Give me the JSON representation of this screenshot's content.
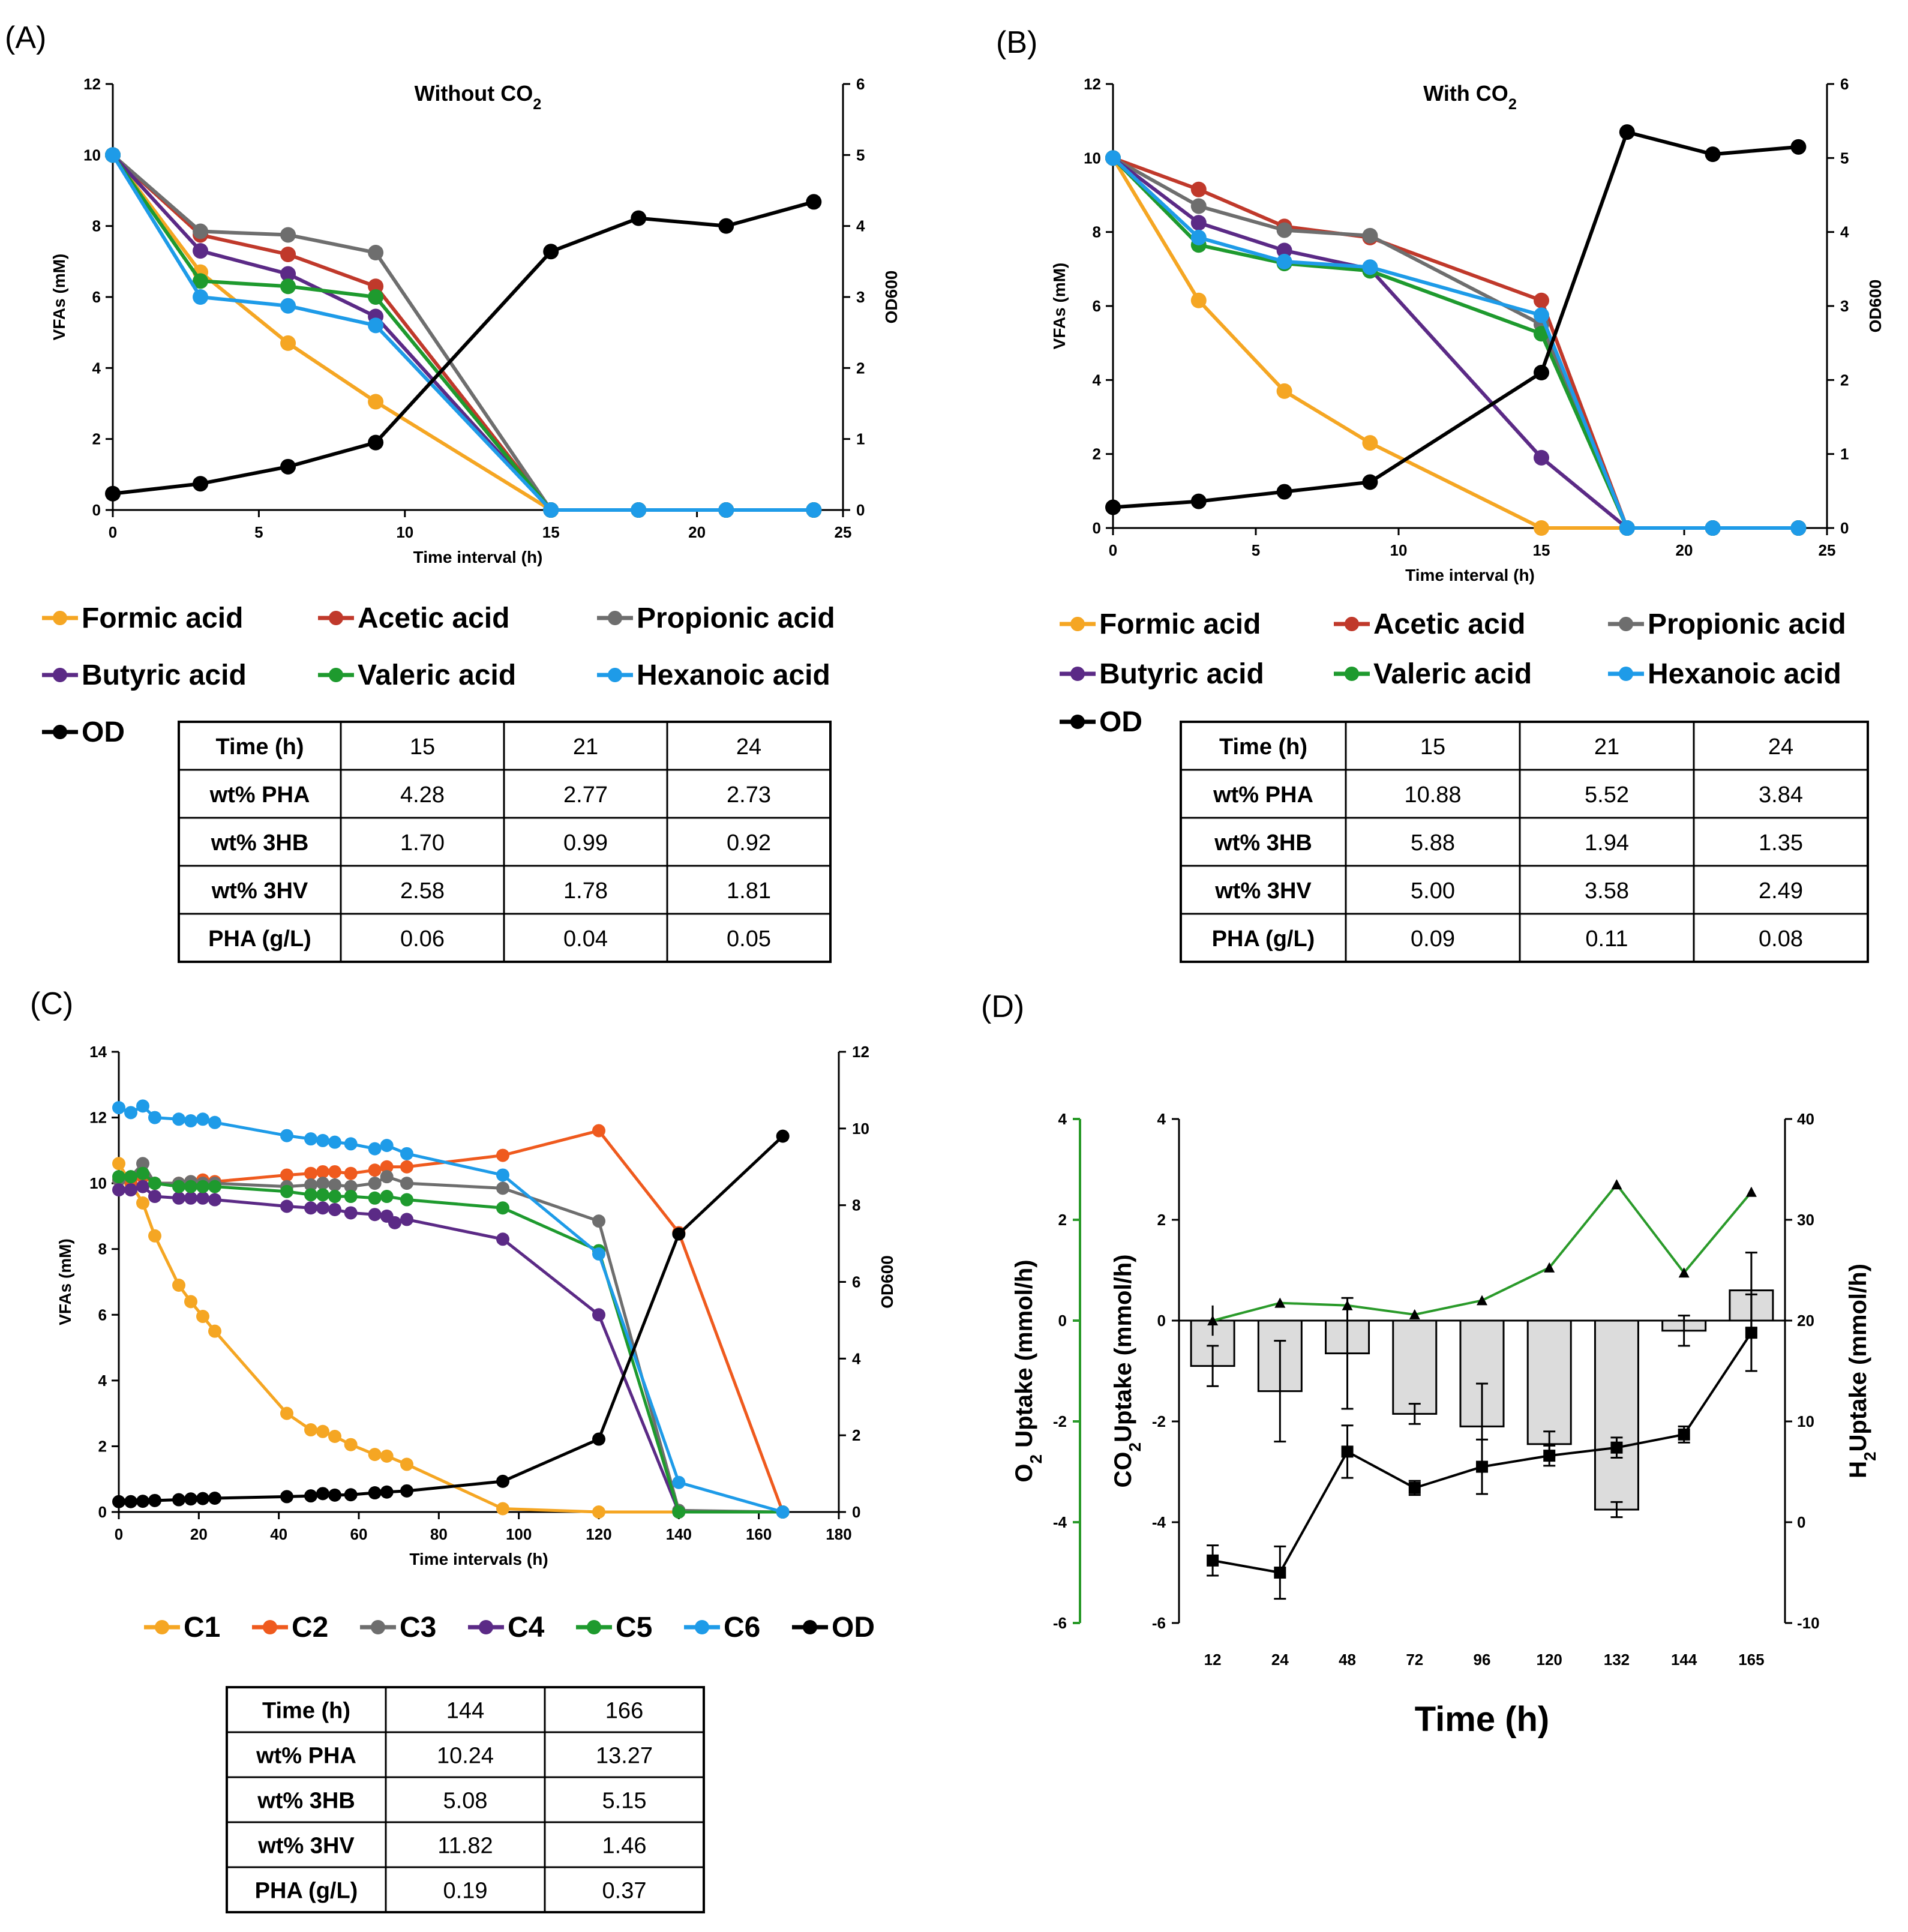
{
  "panels": {
    "A": "(A)",
    "B": "(B)",
    "C": "(C)",
    "D": "(D)"
  },
  "colors": {
    "formic": "#f5a623",
    "acetic": "#c0392b",
    "propionic": "#6e6e6e",
    "butyric": "#5b2a86",
    "valeric": "#1e9a2e",
    "hexanoic": "#1e9be8",
    "od": "#000000",
    "c2": "#ef5a1e",
    "bar": "#dcdcdc",
    "o2line": "#2a9a2a"
  },
  "chart_data": [
    {
      "id": "A",
      "type": "line",
      "title": "Without CO",
      "title_sub": "2",
      "xlabel": "Time interval (h)",
      "ylabel": "VFAs (mM)",
      "y2label": "OD600",
      "xlim": [
        0,
        25
      ],
      "ylim": [
        0,
        12
      ],
      "y2lim": [
        0,
        6
      ],
      "xticks": [
        "0",
        "5",
        "10",
        "15",
        "20",
        "25"
      ],
      "yticks": [
        "0",
        "2",
        "4",
        "6",
        "8",
        "10",
        "12"
      ],
      "y2ticks": [
        "0",
        "1",
        "2",
        "3",
        "4",
        "5",
        "6"
      ],
      "x": [
        0,
        3,
        6,
        9,
        15,
        18,
        21,
        24
      ],
      "series": [
        {
          "key": "formic",
          "name": "Formic acid",
          "values": [
            10,
            6.7,
            4.7,
            3.05,
            0,
            0,
            0,
            0
          ]
        },
        {
          "key": "acetic",
          "name": "Acetic acid",
          "values": [
            10,
            7.75,
            7.2,
            6.3,
            0,
            0,
            0,
            0
          ]
        },
        {
          "key": "propionic",
          "name": "Propionic acid",
          "values": [
            10,
            7.85,
            7.75,
            7.25,
            0,
            0,
            0,
            0
          ]
        },
        {
          "key": "butyric",
          "name": "Butyric acid",
          "values": [
            10,
            7.3,
            6.65,
            5.45,
            0,
            0,
            0,
            0
          ]
        },
        {
          "key": "valeric",
          "name": "Valeric acid",
          "values": [
            10,
            6.45,
            6.3,
            6.0,
            0,
            0,
            0,
            0
          ]
        },
        {
          "key": "hexanoic",
          "name": "Hexanoic acid",
          "values": [
            10,
            6.0,
            5.75,
            5.2,
            0,
            0,
            0,
            0
          ]
        },
        {
          "key": "od",
          "name": "OD",
          "axis": "right",
          "values": [
            0.23,
            0.37,
            0.61,
            0.95,
            3.64,
            4.11,
            4.0,
            4.34
          ]
        }
      ],
      "table": {
        "header": [
          "Time (h)",
          "15",
          "21",
          "24"
        ],
        "rows": [
          [
            "wt% PHA",
            "4.28",
            "2.77",
            "2.73"
          ],
          [
            "wt% 3HB",
            "1.70",
            "0.99",
            "0.92"
          ],
          [
            "wt% 3HV",
            "2.58",
            "1.78",
            "1.81"
          ],
          [
            "PHA (g/L)",
            "0.06",
            "0.04",
            "0.05"
          ]
        ]
      }
    },
    {
      "id": "B",
      "type": "line",
      "title": "With CO",
      "title_sub": "2",
      "xlabel": "Time interval (h)",
      "ylabel": "VFAs (mM)",
      "y2label": "OD600",
      "xlim": [
        0,
        25
      ],
      "ylim": [
        0,
        12
      ],
      "y2lim": [
        0,
        6
      ],
      "xticks": [
        "0",
        "5",
        "10",
        "15",
        "20",
        "25"
      ],
      "yticks": [
        "0",
        "2",
        "4",
        "6",
        "8",
        "10",
        "12"
      ],
      "y2ticks": [
        "0",
        "1",
        "2",
        "3",
        "4",
        "5",
        "6"
      ],
      "x": [
        0,
        3,
        6,
        9,
        15,
        18,
        21,
        24
      ],
      "series": [
        {
          "key": "formic",
          "name": "Formic acid",
          "values": [
            10,
            6.15,
            3.7,
            2.3,
            0,
            0,
            0,
            0
          ]
        },
        {
          "key": "acetic",
          "name": "Acetic acid",
          "values": [
            10,
            9.15,
            8.15,
            7.85,
            6.15,
            0,
            0,
            0
          ]
        },
        {
          "key": "propionic",
          "name": "Propionic acid",
          "values": [
            10,
            8.7,
            8.05,
            7.9,
            5.5,
            0,
            0,
            0
          ]
        },
        {
          "key": "butyric",
          "name": "Butyric acid",
          "values": [
            10,
            8.25,
            7.5,
            7.0,
            1.9,
            0,
            0,
            0
          ]
        },
        {
          "key": "valeric",
          "name": "Valeric acid",
          "values": [
            10,
            7.65,
            7.15,
            6.95,
            5.25,
            0,
            0,
            0
          ]
        },
        {
          "key": "hexanoic",
          "name": "Hexanoic acid",
          "values": [
            10,
            7.85,
            7.2,
            7.05,
            5.75,
            0,
            0,
            0
          ]
        },
        {
          "key": "od",
          "name": "OD",
          "axis": "right",
          "values": [
            0.28,
            0.36,
            0.49,
            0.62,
            2.1,
            5.35,
            5.05,
            5.15
          ]
        }
      ],
      "table": {
        "header": [
          "Time (h)",
          "15",
          "21",
          "24"
        ],
        "rows": [
          [
            "wt% PHA",
            "10.88",
            "5.52",
            "3.84"
          ],
          [
            "wt% 3HB",
            "5.88",
            "1.94",
            "1.35"
          ],
          [
            "wt% 3HV",
            "5.00",
            "3.58",
            "2.49"
          ],
          [
            "PHA (g/L)",
            "0.09",
            "0.11",
            "0.08"
          ]
        ]
      }
    },
    {
      "id": "C",
      "type": "line",
      "title": "",
      "xlabel": "Time intervals (h)",
      "ylabel": "VFAs (mM)",
      "y2label": "OD600",
      "xlim": [
        0,
        180
      ],
      "ylim": [
        0,
        14
      ],
      "y2lim": [
        0,
        12
      ],
      "xticks": [
        "0",
        "20",
        "40",
        "60",
        "80",
        "100",
        "120",
        "140",
        "160",
        "180"
      ],
      "yticks": [
        "0",
        "2",
        "4",
        "6",
        "8",
        "10",
        "12",
        "14"
      ],
      "y2ticks": [
        "0",
        "2",
        "4",
        "6",
        "8",
        "10",
        "12"
      ],
      "series": [
        {
          "key": "formic",
          "name": "C1",
          "x": [
            0,
            3,
            6,
            9,
            15,
            18,
            21,
            24,
            42,
            48,
            51,
            54,
            58,
            64,
            67,
            72,
            96,
            120,
            140,
            166
          ],
          "values": [
            10.6,
            10.0,
            9.4,
            8.4,
            6.9,
            6.4,
            5.95,
            5.5,
            3.0,
            2.5,
            2.45,
            2.3,
            2.05,
            1.75,
            1.7,
            1.45,
            0.1,
            0,
            0,
            0
          ]
        },
        {
          "key": "c2",
          "name": "C2",
          "x": [
            0,
            3,
            6,
            9,
            15,
            18,
            21,
            24,
            42,
            48,
            51,
            54,
            58,
            64,
            67,
            72,
            96,
            120,
            140,
            166
          ],
          "values": [
            10.1,
            10.05,
            10.2,
            10.0,
            10.0,
            10.05,
            10.1,
            10.05,
            10.25,
            10.3,
            10.35,
            10.35,
            10.3,
            10.4,
            10.5,
            10.5,
            10.85,
            11.6,
            8.5,
            0
          ]
        },
        {
          "key": "propionic",
          "name": "C3",
          "x": [
            0,
            3,
            6,
            9,
            15,
            18,
            21,
            24,
            42,
            48,
            51,
            54,
            58,
            64,
            67,
            72,
            96,
            120,
            140,
            166
          ],
          "values": [
            10.1,
            10.2,
            10.6,
            10.0,
            10.0,
            10.05,
            10.0,
            10.0,
            9.9,
            9.95,
            10.0,
            9.95,
            9.9,
            10.0,
            10.2,
            10.0,
            9.85,
            8.85,
            0.05,
            0
          ]
        },
        {
          "key": "butyric",
          "name": "C4",
          "x": [
            0,
            3,
            6,
            9,
            15,
            18,
            21,
            24,
            42,
            48,
            51,
            54,
            58,
            64,
            67,
            69,
            72,
            96,
            120,
            140,
            166
          ],
          "values": [
            9.8,
            9.8,
            9.9,
            9.6,
            9.55,
            9.55,
            9.55,
            9.5,
            9.3,
            9.25,
            9.25,
            9.2,
            9.1,
            9.05,
            9.0,
            8.8,
            8.9,
            8.3,
            6.0,
            0,
            0
          ]
        },
        {
          "key": "valeric",
          "name": "C5",
          "x": [
            0,
            3,
            6,
            9,
            15,
            18,
            21,
            24,
            42,
            48,
            51,
            54,
            58,
            64,
            67,
            72,
            96,
            120,
            140,
            166
          ],
          "values": [
            10.2,
            10.2,
            10.3,
            10.0,
            9.9,
            9.9,
            9.9,
            9.9,
            9.75,
            9.65,
            9.65,
            9.6,
            9.6,
            9.55,
            9.6,
            9.5,
            9.25,
            7.95,
            0,
            0
          ]
        },
        {
          "key": "hexanoic",
          "name": "C6",
          "x": [
            0,
            3,
            6,
            9,
            15,
            18,
            21,
            24,
            42,
            48,
            51,
            54,
            58,
            64,
            67,
            72,
            96,
            120,
            140,
            166
          ],
          "values": [
            12.3,
            12.15,
            12.35,
            12.0,
            11.95,
            11.9,
            11.95,
            11.85,
            11.45,
            11.35,
            11.3,
            11.25,
            11.2,
            11.05,
            11.15,
            10.9,
            10.25,
            7.85,
            0.9,
            0
          ]
        },
        {
          "key": "od",
          "name": "OD",
          "axis": "right",
          "x": [
            0,
            3,
            6,
            9,
            15,
            18,
            21,
            24,
            42,
            48,
            51,
            54,
            58,
            64,
            67,
            72,
            96,
            120,
            140,
            166
          ],
          "values": [
            0.27,
            0.27,
            0.28,
            0.3,
            0.32,
            0.34,
            0.35,
            0.36,
            0.4,
            0.42,
            0.48,
            0.44,
            0.45,
            0.5,
            0.52,
            0.55,
            0.8,
            1.9,
            7.25,
            9.8
          ]
        }
      ],
      "table": {
        "header": [
          "Time (h)",
          "144",
          "166"
        ],
        "rows": [
          [
            "wt% PHA",
            "10.24",
            "13.27"
          ],
          [
            "wt% 3HB",
            "5.08",
            "5.15"
          ],
          [
            "wt% 3HV",
            "11.82",
            "1.46"
          ],
          [
            "PHA (g/L)",
            "0.19",
            "0.37"
          ]
        ]
      }
    },
    {
      "id": "D",
      "type": "bar+line",
      "xlabel": "Time (h)",
      "categories": [
        "12",
        "24",
        "48",
        "72",
        "96",
        "120",
        "132",
        "144",
        "165"
      ],
      "o2_axis": {
        "label": "O",
        "sub": "2",
        "rest": " Uptake (mmol/h)",
        "ylim": [
          -6,
          4
        ],
        "ticks": [
          "-6",
          "-4",
          "-2",
          "0",
          "2",
          "4"
        ]
      },
      "co2_axis": {
        "label": "CO",
        "sub": "2",
        "rest": "Uptake (mmol/h)",
        "ylim": [
          -6,
          4
        ],
        "ticks": [
          "-6",
          "-4",
          "-2",
          "0",
          "2",
          "4"
        ]
      },
      "h2_axis": {
        "label": "H",
        "sub": "2",
        "rest": "Uptake (mmol/h)",
        "ylim": [
          -10,
          40
        ],
        "ticks": [
          "-10",
          "0",
          "10",
          "20",
          "30",
          "40"
        ]
      },
      "co2_bars": {
        "values": [
          -0.9,
          -1.4,
          -0.65,
          -1.85,
          -2.1,
          -2.45,
          -3.75,
          -0.2,
          0.6
        ],
        "errors": [
          0.4,
          1.0,
          1.1,
          0.2,
          0.85,
          0.25,
          0.15,
          0.3,
          0.75
        ]
      },
      "o2_line": {
        "values": [
          0.0,
          0.35,
          0.3,
          0.12,
          0.4,
          1.05,
          2.7,
          0.95,
          2.55
        ],
        "errors": [
          0.3,
          0.08,
          0.12,
          0.08,
          0.08,
          0.08,
          0.08,
          0.08,
          0.08
        ]
      },
      "h2_line": {
        "values": [
          -3.8,
          -5.0,
          7.0,
          3.4,
          5.5,
          6.6,
          7.4,
          8.7,
          18.8
        ],
        "errors": [
          1.5,
          2.6,
          2.6,
          0.7,
          2.7,
          1.0,
          1.0,
          0.8,
          3.8
        ]
      }
    }
  ]
}
